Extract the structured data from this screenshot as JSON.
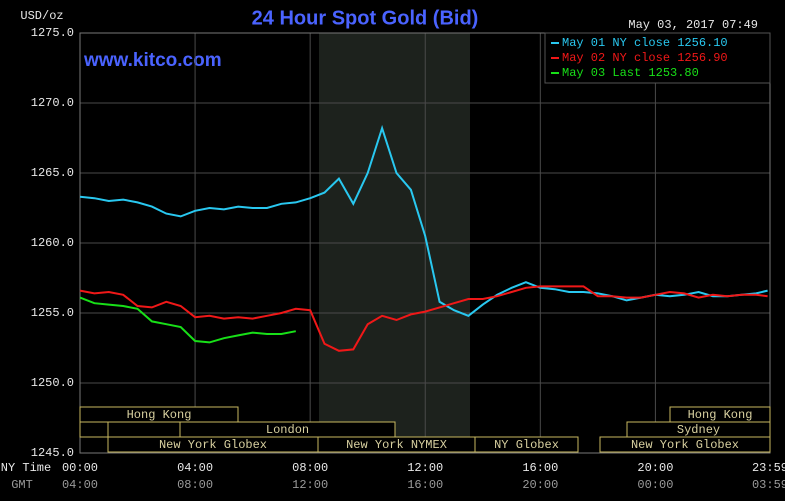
{
  "chart_data": {
    "type": "line",
    "title": "24 Hour Spot Gold (Bid)",
    "y_label": "USD/oz",
    "timestamp": "May 03, 2017 07:49",
    "watermark": "www.kitco.com",
    "x_label": "NY Time",
    "x2_label": "GMT",
    "x": [
      0,
      0.5,
      1,
      1.5,
      2,
      2.5,
      3,
      3.5,
      4,
      4.5,
      5,
      5.5,
      6,
      6.5,
      7,
      7.5,
      8,
      8.5,
      9,
      9.5,
      10,
      10.5,
      11,
      11.5,
      12,
      12.5,
      13,
      13.5,
      14,
      14.5,
      15,
      15.5,
      16,
      16.5,
      17,
      17.5,
      18,
      18.5,
      19,
      19.5,
      20,
      20.5,
      21,
      21.5,
      22,
      22.5,
      23,
      23.5,
      23.9
    ],
    "series": [
      {
        "name": "May 01 NY close 1256.10",
        "color": "#29c8f0",
        "values": [
          1263.3,
          1263.2,
          1263.0,
          1263.1,
          1262.9,
          1262.6,
          1262.1,
          1261.9,
          1262.3,
          1262.5,
          1262.4,
          1262.6,
          1262.5,
          1262.5,
          1262.8,
          1262.9,
          1263.2,
          1263.6,
          1264.6,
          1262.8,
          1265.0,
          1268.2,
          1265.0,
          1263.8,
          1260.5,
          1255.8,
          1255.2,
          1254.8,
          1255.6,
          1256.3,
          1256.8,
          1257.2,
          1256.8,
          1256.7,
          1256.5,
          1256.5,
          1256.4,
          1256.2,
          1255.9,
          1256.1,
          1256.3,
          1256.2,
          1256.3,
          1256.5,
          1256.2,
          1256.2,
          1256.3,
          1256.4,
          1256.6
        ]
      },
      {
        "name": "May 02 NY close 1256.90",
        "color": "#f01818",
        "values": [
          1256.6,
          1256.4,
          1256.5,
          1256.3,
          1255.5,
          1255.4,
          1255.8,
          1255.5,
          1254.7,
          1254.8,
          1254.6,
          1254.7,
          1254.6,
          1254.8,
          1255.0,
          1255.3,
          1255.2,
          1252.8,
          1252.3,
          1252.4,
          1254.2,
          1254.8,
          1254.5,
          1254.9,
          1255.1,
          1255.4,
          1255.7,
          1256.0,
          1256.0,
          1256.2,
          1256.5,
          1256.8,
          1256.9,
          1256.9,
          1256.9,
          1256.9,
          1256.2,
          1256.2,
          1256.1,
          1256.1,
          1256.3,
          1256.5,
          1256.4,
          1256.1,
          1256.3,
          1256.2,
          1256.3,
          1256.3,
          1256.2
        ]
      },
      {
        "name": "May 03 Last 1253.80",
        "color": "#18e018",
        "values": [
          1256.1,
          1255.7,
          1255.6,
          1255.5,
          1255.3,
          1254.4,
          1254.2,
          1254.0,
          1253.0,
          1252.9,
          1253.2,
          1253.4,
          1253.6,
          1253.5,
          1253.5,
          1253.7,
          null,
          null,
          null,
          null,
          null,
          null,
          null,
          null,
          null,
          null,
          null,
          null,
          null,
          null,
          null,
          null,
          null,
          null,
          null,
          null,
          null,
          null,
          null,
          null,
          null,
          null,
          null,
          null,
          null,
          null,
          null,
          null,
          null
        ]
      }
    ],
    "xlim": [
      0,
      23.983
    ],
    "xticks": [
      {
        "value": 0,
        "label": "00:00"
      },
      {
        "value": 4,
        "label": "04:00"
      },
      {
        "value": 8,
        "label": "08:00"
      },
      {
        "value": 12,
        "label": "12:00"
      },
      {
        "value": 16,
        "label": "16:00"
      },
      {
        "value": 20,
        "label": "20:00"
      },
      {
        "value": 23.983,
        "label": "23:59"
      }
    ],
    "gmt_labels": [
      "04:00",
      "08:00",
      "12:00",
      "16:00",
      "20:00",
      "00:00",
      "03:59"
    ],
    "ylim": [
      1245,
      1275
    ],
    "yticks": [
      {
        "value": 1245,
        "label": "1245.0"
      },
      {
        "value": 1250,
        "label": "1250.0"
      },
      {
        "value": 1255,
        "label": "1255.0"
      },
      {
        "value": 1260,
        "label": "1260.0"
      },
      {
        "value": 1265,
        "label": "1265.0"
      },
      {
        "value": 1270,
        "label": "1270.0"
      },
      {
        "value": 1275,
        "label": "1275.0"
      }
    ],
    "sessions": [
      "Hong Kong",
      "London",
      "New York Globex",
      "New York NYMEX",
      "NY Globex",
      "Hong Kong",
      "Sydney",
      "New York Globex"
    ],
    "grid": true,
    "legend": "top-right"
  }
}
